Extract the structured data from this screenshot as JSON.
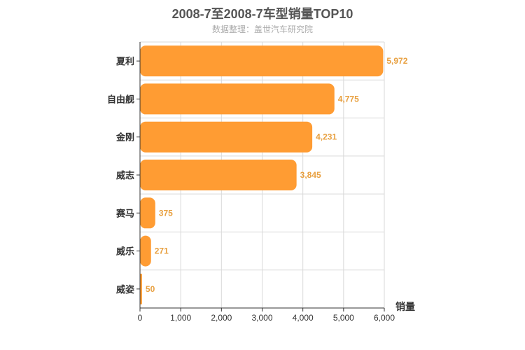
{
  "chart_data": {
    "type": "bar",
    "orientation": "horizontal",
    "title": "2008-7至2008-7车型销量TOP10",
    "subtitle": "数据整理：盖世汽车研究院",
    "categories": [
      "夏利",
      "自由舰",
      "金刚",
      "威志",
      "赛马",
      "威乐",
      "威姿"
    ],
    "values": [
      5972,
      4775,
      4231,
      3845,
      375,
      271,
      50
    ],
    "value_labels": [
      "5,972",
      "4,775",
      "4,231",
      "3,845",
      "375",
      "271",
      "50"
    ],
    "xlabel": "销量",
    "ylabel": "",
    "xlim": [
      0,
      6000
    ],
    "xticks": [
      0,
      1000,
      2000,
      3000,
      4000,
      5000,
      6000
    ],
    "xtick_labels": [
      "0",
      "1,000",
      "2,000",
      "3,000",
      "4,000",
      "5,000",
      "6,000"
    ],
    "grid": true,
    "colors": {
      "bar": "#ff9c33",
      "value_label": "#e8a040",
      "grid": "#d9d9d9",
      "axis": "#333333"
    }
  }
}
